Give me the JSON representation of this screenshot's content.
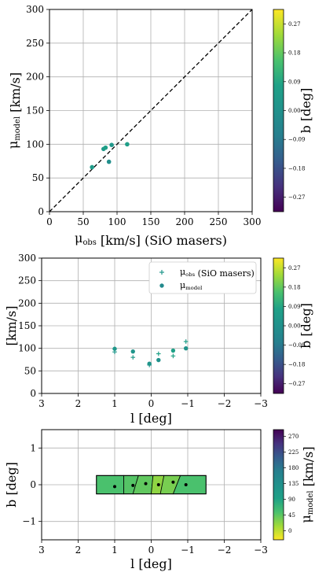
{
  "chart_data": [
    {
      "type": "scatter",
      "title": "",
      "xlabel": "μ_obs [km/s] (SiO masers)",
      "ylabel": "μ_model [km/s]",
      "xlim": [
        0,
        300
      ],
      "ylim": [
        0,
        300
      ],
      "xticks": [
        "0",
        "50",
        "100",
        "150",
        "200",
        "250",
        "300"
      ],
      "yticks": [
        "0",
        "50",
        "100",
        "150",
        "200",
        "250",
        "300"
      ],
      "grid": true,
      "reference_line": "y = x (dashed)",
      "points": [
        {
          "x": 63,
          "y": 66,
          "b": 0.05
        },
        {
          "x": 80,
          "y": 93,
          "b": 0.04
        },
        {
          "x": 83,
          "y": 95,
          "b": 0.07
        },
        {
          "x": 88,
          "y": 74,
          "b": -0.01
        },
        {
          "x": 92,
          "y": 99,
          "b": 0.03
        },
        {
          "x": 115,
          "y": 100,
          "b": 0.06
        }
      ],
      "colorbar": {
        "label": "b [deg]",
        "ticks": [
          "0.27",
          "0.18",
          "0.09",
          "0.00",
          "−0.09",
          "−0.18",
          "−0.27"
        ],
        "range": [
          -0.3,
          0.3
        ],
        "colormap": "viridis"
      }
    },
    {
      "type": "scatter",
      "title": "",
      "xlabel": "l [deg]",
      "ylabel": "[km/s]",
      "xlim": [
        3,
        -3
      ],
      "ylim": [
        0,
        300
      ],
      "xticks": [
        "3",
        "2",
        "1",
        "0",
        "−1",
        "−2",
        "−3"
      ],
      "yticks": [
        "0",
        "50",
        "100",
        "150",
        "200",
        "250",
        "300"
      ],
      "grid": true,
      "legend": {
        "placement": "top-right",
        "entries": [
          "μ_obs (SiO masers)",
          "μ_model"
        ]
      },
      "series": [
        {
          "name": "μ_obs (SiO masers)",
          "marker": "plus",
          "points": [
            {
              "x": 1.0,
              "y": 92,
              "b": 0.03
            },
            {
              "x": 0.5,
              "y": 80,
              "b": 0.04
            },
            {
              "x": 0.05,
              "y": 63,
              "b": 0.02
            },
            {
              "x": -0.2,
              "y": 88,
              "b": 0.07
            },
            {
              "x": -0.6,
              "y": 83,
              "b": 0.08
            },
            {
              "x": -0.95,
              "y": 115,
              "b": 0.06
            }
          ]
        },
        {
          "name": "μ_model",
          "marker": "circle",
          "points": [
            {
              "x": 1.0,
              "y": 99,
              "b": 0.03
            },
            {
              "x": 0.5,
              "y": 93,
              "b": 0.02
            },
            {
              "x": 0.05,
              "y": 66,
              "b": 0.02
            },
            {
              "x": -0.2,
              "y": 74,
              "b": 0.0
            },
            {
              "x": -0.6,
              "y": 95,
              "b": 0.07
            },
            {
              "x": -0.95,
              "y": 100,
              "b": 0.01
            }
          ]
        }
      ],
      "colorbar": {
        "label": "b [deg]",
        "ticks": [
          "0.27",
          "0.18",
          "0.09",
          "0.00",
          "−0.09",
          "−0.18",
          "−0.27"
        ],
        "range": [
          -0.3,
          0.3
        ],
        "colormap": "viridis"
      }
    },
    {
      "type": "heatmap",
      "title": "",
      "xlabel": "l [deg]",
      "ylabel": "b [deg]",
      "xlim": [
        3,
        -3
      ],
      "ylim": [
        -1.5,
        1.5
      ],
      "xticks": [
        "3",
        "2",
        "1",
        "0",
        "−1",
        "−2",
        "−3"
      ],
      "yticks": [
        "1",
        "0",
        "−1"
      ],
      "grid": true,
      "region": {
        "l_range": [
          1.5,
          -1.5
        ],
        "b_range": [
          -0.25,
          0.25
        ]
      },
      "cells": [
        {
          "l_edges": [
            1.5,
            0.75,
            0.75,
            1.5
          ],
          "value": 75
        },
        {
          "l_edges": [
            0.75,
            0.35,
            0.5,
            0.75
          ],
          "value": 70
        },
        {
          "l_edges": [
            0.35,
            -0.05,
            0.0,
            0.5
          ],
          "value": 65
        },
        {
          "l_edges": [
            -0.05,
            -0.35,
            -0.25,
            0.0
          ],
          "value": 45
        },
        {
          "l_edges": [
            -0.35,
            -0.8,
            -0.6,
            -0.25
          ],
          "value": 55
        },
        {
          "l_edges": [
            -0.8,
            -1.5,
            -1.5,
            -0.6
          ],
          "value": 75
        }
      ],
      "points": [
        {
          "l": 1.0,
          "b": -0.05
        },
        {
          "l": 0.5,
          "b": -0.02
        },
        {
          "l": 0.15,
          "b": 0.03
        },
        {
          "l": -0.2,
          "b": 0.0
        },
        {
          "l": -0.6,
          "b": 0.07
        },
        {
          "l": -0.95,
          "b": 0.0
        }
      ],
      "colorbar": {
        "label": "μ_model [km/s]",
        "ticks": [
          "270",
          "225",
          "180",
          "135",
          "90",
          "45",
          "0"
        ],
        "range": [
          0,
          300
        ],
        "colormap": "viridis_r"
      }
    }
  ]
}
